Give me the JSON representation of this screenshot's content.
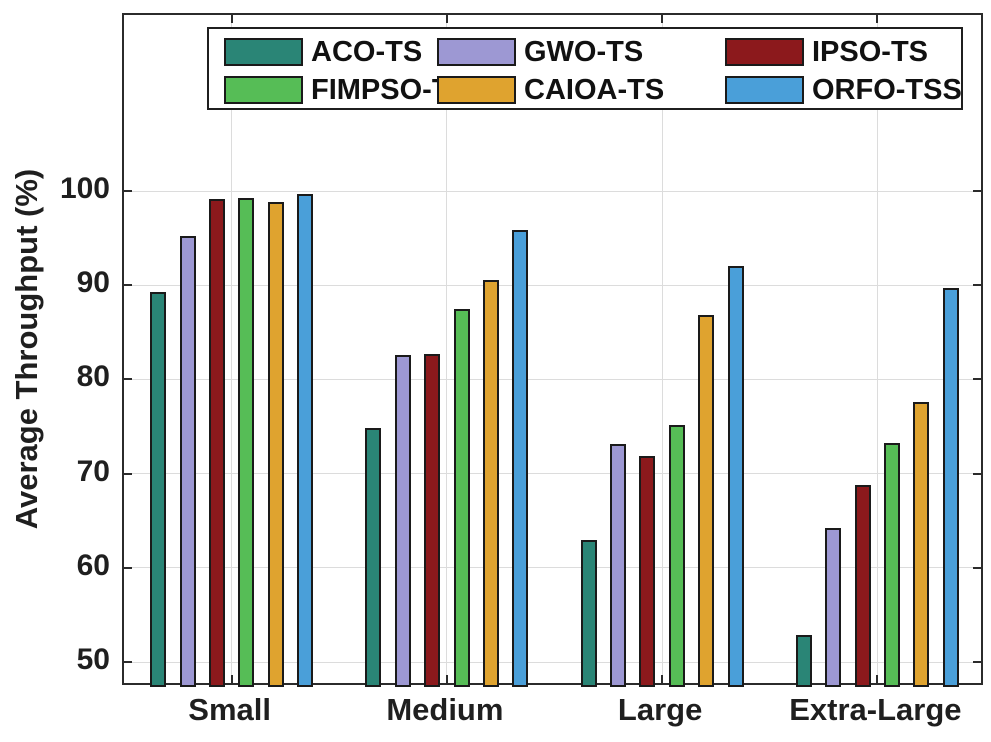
{
  "chart_data": {
    "type": "bar",
    "title": "",
    "xlabel": "",
    "ylabel": "Average Throughput (%)",
    "categories": [
      "Small",
      "Medium",
      "Large",
      "Extra-Large"
    ],
    "y_ticks": [
      50,
      60,
      70,
      80,
      90,
      100
    ],
    "ylim_drawn": [
      47.35,
      118.7
    ],
    "grid": true,
    "series": [
      {
        "name": "ACO-TS",
        "color": "#2a8576",
        "values": [
          89.3,
          74.9,
          63.0,
          52.9
        ]
      },
      {
        "name": "GWO-TS",
        "color": "#9d98d3",
        "values": [
          95.2,
          82.6,
          73.1,
          64.2
        ]
      },
      {
        "name": "IPSO-TS",
        "color": "#8c191c",
        "values": [
          99.2,
          82.7,
          71.9,
          68.8
        ]
      },
      {
        "name": "FIMPSO-TS",
        "color": "#56bd56",
        "values": [
          99.3,
          87.5,
          75.2,
          73.3
        ]
      },
      {
        "name": "CAIOA-TS",
        "color": "#dfa32f",
        "values": [
          98.8,
          90.6,
          86.8,
          77.6
        ]
      },
      {
        "name": "ORFO-TSS",
        "color": "#4a9fd9",
        "values": [
          99.7,
          95.9,
          92.0,
          89.7
        ]
      }
    ],
    "legend": {
      "position": "north-inside",
      "columns": 3,
      "order": [
        "ACO-TS",
        "FIMPSO-TS",
        "GWO-TS",
        "CAIOA-TS",
        "IPSO-TS",
        "ORFO-TSS"
      ]
    },
    "colors": {
      "axis": "#2b2b2b",
      "grid": "#dcdcdc",
      "bar_edge": "#1a1a1a",
      "text": "#1f1f1f",
      "background": "#ffffff"
    }
  }
}
